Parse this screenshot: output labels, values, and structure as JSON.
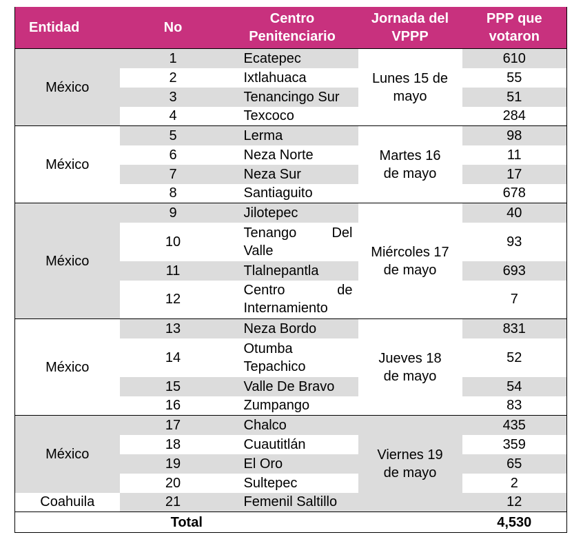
{
  "headers": {
    "entidad": "Entidad",
    "no": "No",
    "centro_1": "Centro",
    "centro_2": "Penitenciario",
    "jornada_1": "Jornada del",
    "jornada_2": "VPPP",
    "ppp_1": "PPP que",
    "ppp_2": "votaron"
  },
  "groups": [
    {
      "entidad": "México",
      "jornada_1": "Lunes 15 de",
      "jornada_2": "mayo",
      "rows": [
        {
          "no": "1",
          "centro": "Ecatepec",
          "ppp": "610"
        },
        {
          "no": "2",
          "centro": "Ixtlahuaca",
          "ppp": "55"
        },
        {
          "no": "3",
          "centro": "Tenancingo Sur",
          "ppp": "51"
        },
        {
          "no": "4",
          "centro": "Texcoco",
          "ppp": "284"
        }
      ]
    },
    {
      "entidad": "México",
      "jornada_1": "Martes 16",
      "jornada_2": "de mayo",
      "rows": [
        {
          "no": "5",
          "centro": "Lerma",
          "ppp": "98"
        },
        {
          "no": "6",
          "centro": "Neza Norte",
          "ppp": "11"
        },
        {
          "no": "7",
          "centro": "Neza Sur",
          "ppp": "17"
        },
        {
          "no": "8",
          "centro": "Santiaguito",
          "ppp": "678"
        }
      ]
    },
    {
      "entidad": "México",
      "jornada_1": "Miércoles 17",
      "jornada_2": "de mayo",
      "rows": [
        {
          "no": "9",
          "centro": "Jilotepec",
          "ppp": "40"
        },
        {
          "no": "10",
          "centro_a": "Tenango",
          "centro_b": "Del",
          "centro_c": "Valle",
          "ppp": "93"
        },
        {
          "no": "11",
          "centro": "Tlalnepantla",
          "ppp": "693"
        },
        {
          "no": "12",
          "centro_a": "Centro",
          "centro_b": "de",
          "centro_c": "Internamiento",
          "ppp": "7"
        }
      ]
    },
    {
      "entidad": "México",
      "jornada_1": "Jueves 18",
      "jornada_2": "de mayo",
      "rows": [
        {
          "no": "13",
          "centro": "Neza Bordo",
          "ppp": "831"
        },
        {
          "no": "14",
          "centro_a": "Otumba",
          "centro_c": "Tepachico",
          "ppp": "52"
        },
        {
          "no": "15",
          "centro": "Valle De Bravo",
          "ppp": "54"
        },
        {
          "no": "16",
          "centro": "Zumpango",
          "ppp": "83"
        }
      ]
    },
    {
      "entidad": "México",
      "entidad_2": "Coahuila",
      "jornada_1": "Viernes 19",
      "jornada_2": "de mayo",
      "rows": [
        {
          "no": "17",
          "centro": "Chalco",
          "ppp": "435"
        },
        {
          "no": "18",
          "centro": "Cuautitlán",
          "ppp": "359"
        },
        {
          "no": "19",
          "centro": "El Oro",
          "ppp": "65"
        },
        {
          "no": "20",
          "centro": "Sultepec",
          "ppp": "2"
        },
        {
          "no": "21",
          "centro": "Femenil Saltillo",
          "ppp": "12"
        }
      ]
    }
  ],
  "total": {
    "label": "Total",
    "value": "4,530"
  }
}
